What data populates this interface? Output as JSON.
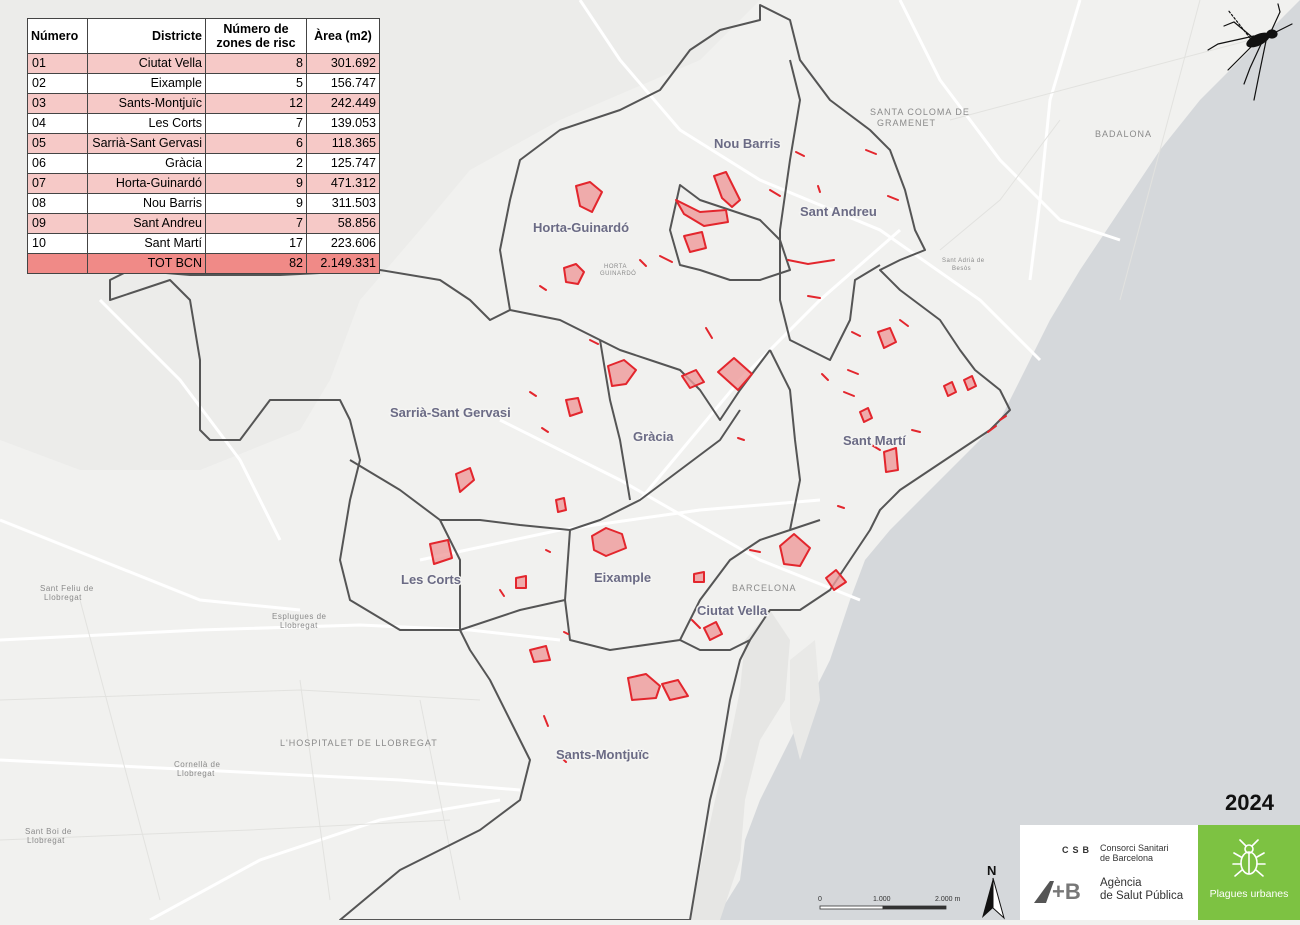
{
  "table": {
    "headers": {
      "number": "Número",
      "district": "Districte",
      "zones_line1": "Número de",
      "zones_line2": "zones de risc",
      "area": "Àrea (m2)"
    },
    "rows": [
      {
        "number": "01",
        "district": "Ciutat Vella",
        "zones": "8",
        "area": "301.692"
      },
      {
        "number": "02",
        "district": "Eixample",
        "zones": "5",
        "area": "156.747"
      },
      {
        "number": "03",
        "district": "Sants-Montjuïc",
        "zones": "12",
        "area": "242.449"
      },
      {
        "number": "04",
        "district": "Les Corts",
        "zones": "7",
        "area": "139.053"
      },
      {
        "number": "05",
        "district": "Sarrià-Sant Gervasi",
        "zones": "6",
        "area": "118.365"
      },
      {
        "number": "06",
        "district": "Gràcia",
        "zones": "2",
        "area": "125.747"
      },
      {
        "number": "07",
        "district": "Horta-Guinardó",
        "zones": "9",
        "area": "471.312"
      },
      {
        "number": "08",
        "district": "Nou Barris",
        "zones": "9",
        "area": "311.503"
      },
      {
        "number": "09",
        "district": "Sant Andreu",
        "zones": "7",
        "area": "58.856"
      },
      {
        "number": "10",
        "district": "Sant Martí",
        "zones": "17",
        "area": "223.606"
      }
    ],
    "total": {
      "number": "",
      "district": "TOT BCN",
      "zones": "82",
      "area": "2.149.331"
    }
  },
  "districts": {
    "nou_barris": "Nou Barris",
    "sant_andreu": "Sant Andreu",
    "horta_guinardo": "Horta-Guinardó",
    "sarria_sant_gervasi": "Sarrià-Sant Gervasi",
    "gracia": "Gràcia",
    "sant_marti": "Sant Martí",
    "les_corts": "Les Corts",
    "eixample": "Eixample",
    "ciutat_vella": "Ciutat Vella",
    "sants_montjuic": "Sants-Montjuïc"
  },
  "places": {
    "santa_coloma_1": "SANTA COLOMA DE",
    "santa_coloma_2": "GRAMENET",
    "badalona": "BADALONA",
    "barcelona": "BARCELONA",
    "hospitalet": "L'HOSPITALET DE LLOBREGAT",
    "sant_feliu_1": "Sant Feliu de",
    "sant_feliu_2": "Llobregat",
    "esplugues_1": "Esplugues de",
    "esplugues_2": "Llobregat",
    "cornella_1": "Cornellà de",
    "cornella_2": "Llobregat",
    "sant_boi_1": "Sant Boi de",
    "sant_boi_2": "Llobregat",
    "horta": "HORTA",
    "guinardo": "GUINARDÓ",
    "sant_adria_1": "Sant Adrià de",
    "sant_adria_2": "Besòs"
  },
  "year": "2024",
  "logos": {
    "csb_abbr": "CSB",
    "csb_name_1": "Consorci Sanitari",
    "csb_name_2": "de Barcelona",
    "asp_mark": "+B",
    "asp_name_1": "Agència",
    "asp_name_2": "de Salut Pública",
    "plagues": "Plagues urbanes"
  },
  "scale": {
    "l0": "0",
    "l1": "1.000",
    "l2": "2.000 m"
  },
  "north": "N",
  "colors": {
    "sea": "#d5d8db",
    "land": "#f1f1ef",
    "district_border": "#555555",
    "risk_fill": "#ef9a9a",
    "risk_stroke": "#e3262d",
    "table_odd": "#f6c9c7",
    "table_total": "#f08a87",
    "plagues_green": "#7dc242"
  },
  "icons": [
    "mosquito-icon",
    "north-arrow-icon",
    "bug-icon"
  ]
}
